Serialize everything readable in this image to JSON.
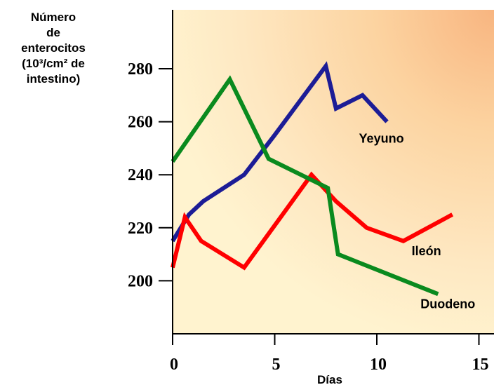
{
  "chart_data": {
    "type": "line",
    "title": "",
    "ylabel_lines": [
      "Número",
      "de",
      "enterocitos",
      "(10³/cm² de",
      "intestino)"
    ],
    "xlabel": "Días",
    "xlim": [
      0,
      15
    ],
    "ylim": [
      180,
      302
    ],
    "x_ticks": [
      0,
      5,
      10,
      15
    ],
    "x_tick_labels": [
      "0",
      "5",
      "10",
      "15"
    ],
    "y_ticks": [
      200,
      220,
      240,
      260,
      280
    ],
    "y_tick_labels": [
      "200",
      "220",
      "240",
      "260",
      "280"
    ],
    "grid": false,
    "series": [
      {
        "name": "Yeyuno",
        "color": "#1c1c96",
        "x": [
          0,
          0.8,
          1.5,
          3.5,
          5,
          7.5,
          8,
          9.3,
          10.5
        ],
        "y": [
          215,
          225,
          230,
          240,
          255,
          281,
          265,
          270,
          260
        ]
      },
      {
        "name": "Ileón",
        "color": "#ff0000",
        "x": [
          0,
          0.6,
          1.4,
          3.5,
          6.8,
          8,
          9.5,
          11.3,
          13.7
        ],
        "y": [
          205,
          224,
          215,
          205,
          240,
          230,
          220,
          215,
          225
        ]
      },
      {
        "name": "Duodeno",
        "color": "#0a8a1e",
        "x": [
          0,
          2.8,
          4.7,
          7.6,
          8.1,
          13
        ],
        "y": [
          245,
          276,
          246,
          235,
          210,
          195
        ]
      }
    ]
  }
}
